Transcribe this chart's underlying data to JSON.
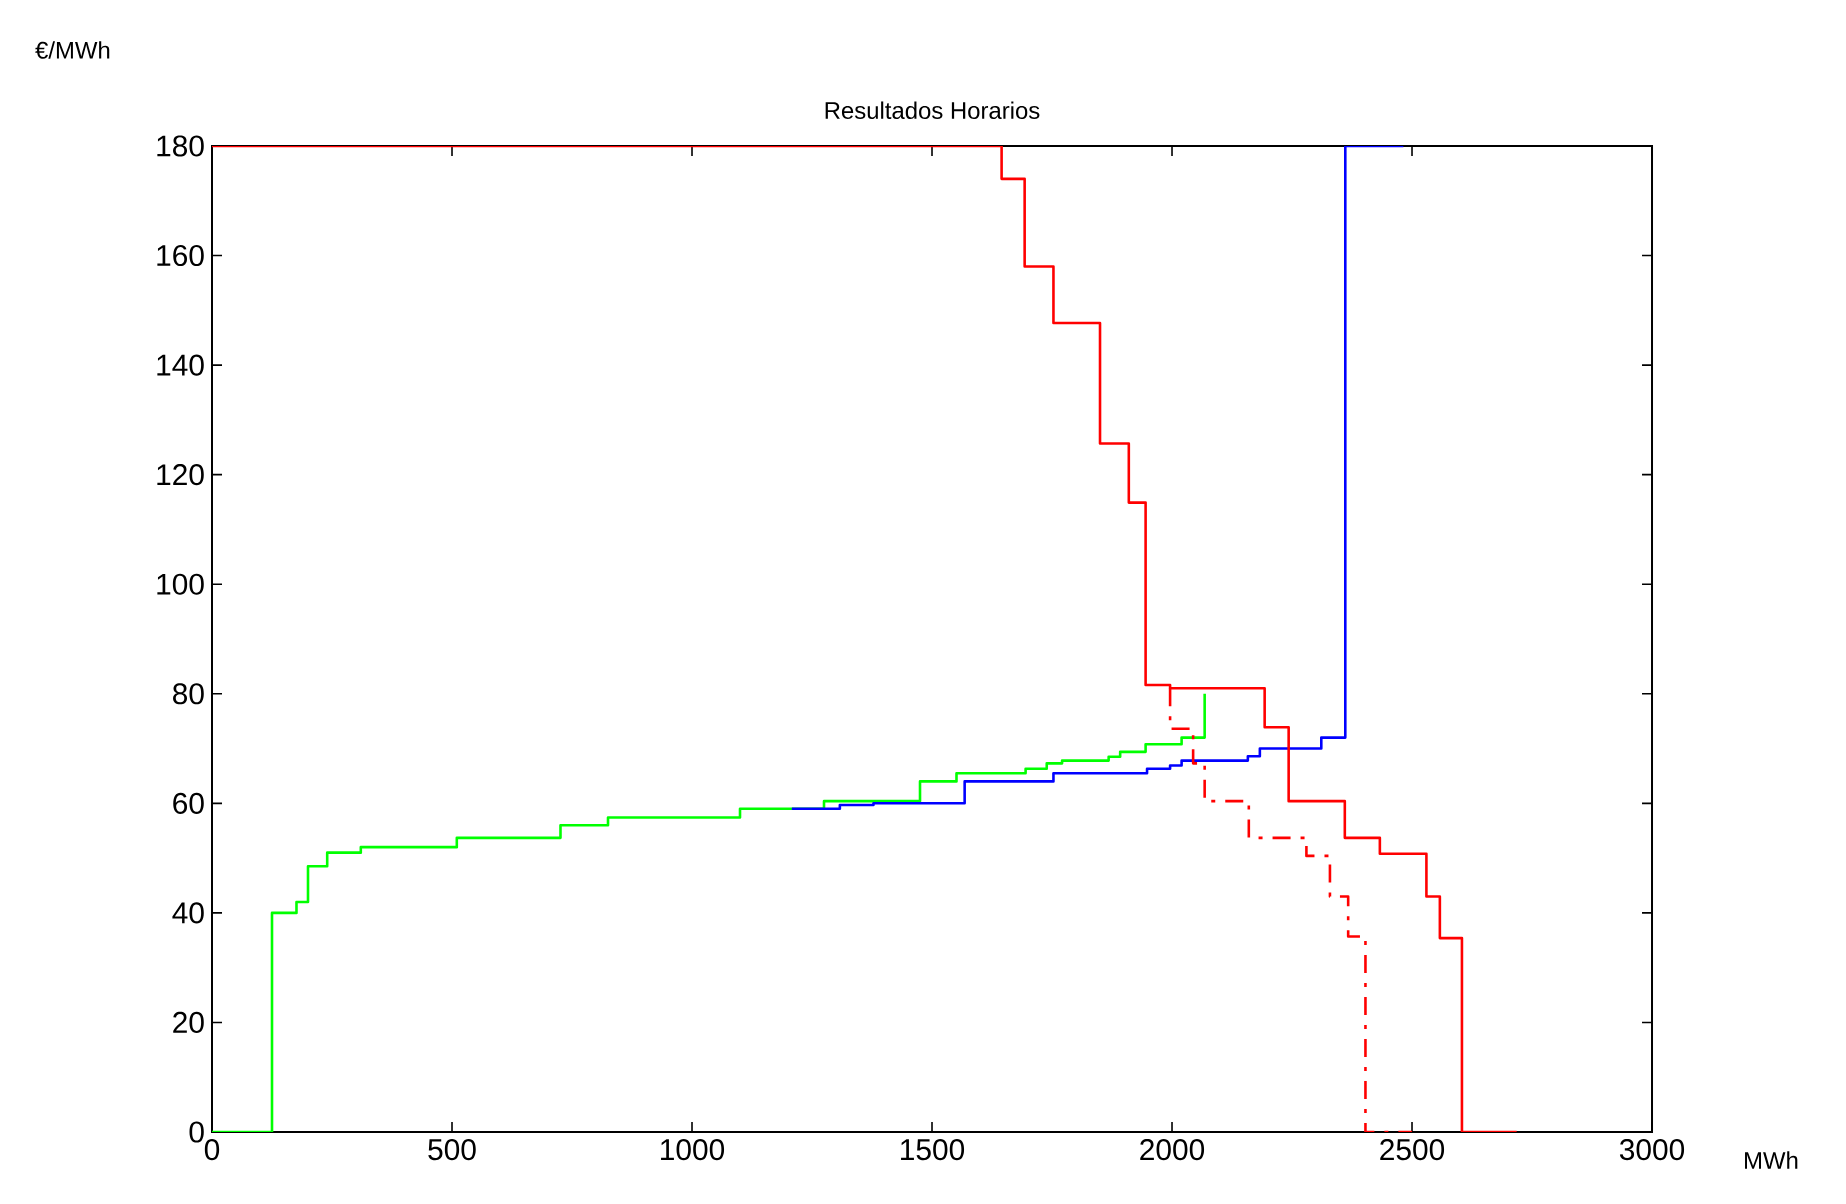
{
  "chart_data": {
    "type": "step",
    "title": "Resultados Horarios",
    "xlabel": "MWh",
    "ylabel": "€/MWh",
    "xlim": [
      0,
      3000
    ],
    "ylim": [
      0,
      180
    ],
    "xticks": [
      0,
      500,
      1000,
      1500,
      2000,
      2500,
      3000
    ],
    "yticks": [
      0,
      20,
      40,
      60,
      80,
      100,
      120,
      140,
      160,
      180
    ],
    "marker": "none",
    "series": [
      {
        "color": "#00ff00",
        "line_style": "solid",
        "x": [
          0,
          125,
          176,
          200,
          240,
          310,
          510,
          726,
          825,
          1100,
          1275,
          1475,
          1551,
          1695,
          1739,
          1771,
          1868,
          1892,
          1945,
          2020,
          2068
        ],
        "values": [
          0,
          40,
          42,
          48.5,
          51,
          52,
          53.7,
          56,
          57.4,
          59,
          60.4,
          64,
          65.5,
          66.3,
          67.3,
          67.8,
          68.5,
          69.4,
          70.8,
          72,
          80
        ]
      },
      {
        "color": "#0000ff",
        "line_style": "solid",
        "x": [
          1208,
          1308,
          1378,
          1568,
          1753,
          1948,
          1996,
          2020,
          2158,
          2183,
          2311,
          2361,
          2482
        ],
        "values": [
          59,
          59.7,
          60,
          64,
          65.5,
          66.3,
          66.9,
          67.8,
          68.6,
          70,
          72,
          180,
          180
        ]
      },
      {
        "color": "#ff0000",
        "line_style": "solid",
        "x": [
          0,
          1645,
          1693,
          1753,
          1850,
          1910,
          1945,
          1996,
          2193,
          2243,
          2360,
          2433,
          2530,
          2558,
          2604,
          2718
        ],
        "values": [
          180,
          174,
          158,
          147.7,
          125.7,
          114.9,
          81.6,
          81,
          73.9,
          60.4,
          53.7,
          50.8,
          43,
          35.4,
          0,
          0
        ]
      },
      {
        "color": "#ff0000",
        "line_style": "dashdot",
        "x": [
          1996,
          1996,
          2044,
          2068,
          2160,
          2280,
          2329,
          2367,
          2403,
          2500
        ],
        "values": [
          81,
          73.6,
          67.3,
          60.4,
          53.7,
          50.4,
          43,
          35.7,
          0,
          0
        ]
      }
    ]
  }
}
